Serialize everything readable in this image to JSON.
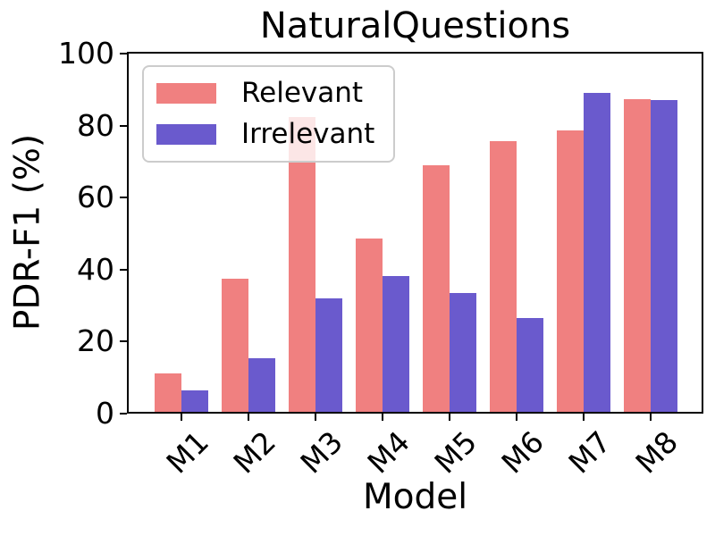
{
  "chart_data": {
    "type": "bar",
    "title": "NaturalQuestions",
    "xlabel": "Model",
    "ylabel": "PDR-F1 (%)",
    "categories": [
      "M1",
      "M2",
      "M3",
      "M4",
      "M5",
      "M6",
      "M7",
      "M8"
    ],
    "series": [
      {
        "name": "Relevant",
        "color": "#F08080",
        "values": [
          11.2,
          37.4,
          82.5,
          48.6,
          69.0,
          75.7,
          78.6,
          87.4
        ]
      },
      {
        "name": "Irrelevant",
        "color": "#6A5ACD",
        "values": [
          6.4,
          15.4,
          32.1,
          38.3,
          33.6,
          26.5,
          89.2,
          87.0
        ]
      }
    ],
    "ylim": [
      0,
      100
    ],
    "yticks": [
      0,
      20,
      40,
      60,
      80,
      100
    ],
    "legend_position": "upper-left",
    "grid": false,
    "colors": {
      "axis": "#000000",
      "text": "#000000",
      "legend_border": "#cccccc"
    }
  }
}
